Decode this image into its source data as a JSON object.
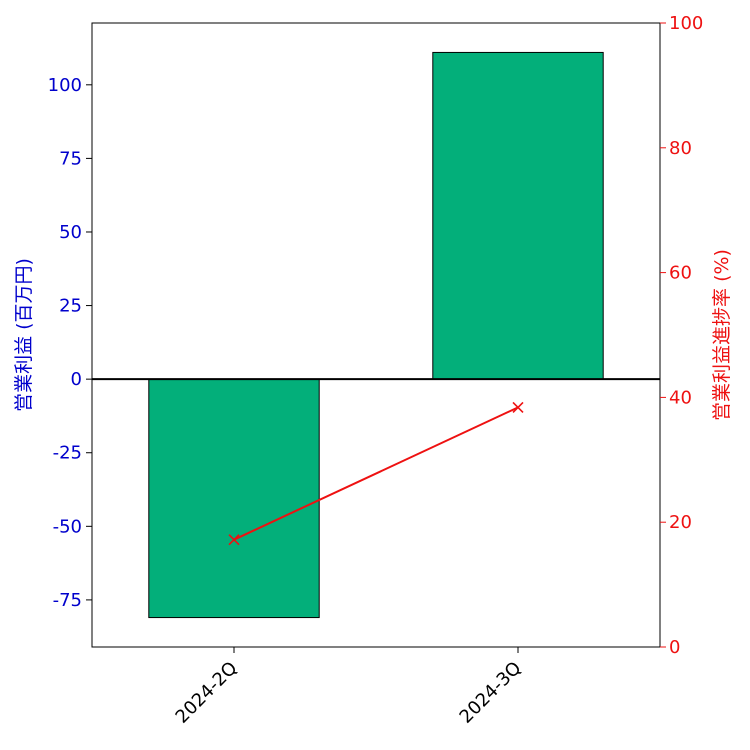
{
  "chart_data": {
    "type": "bar",
    "categories": [
      "2024-2Q",
      "2024-3Q"
    ],
    "series": [
      {
        "type": "bar",
        "axis": "left",
        "values": [
          -81,
          111
        ]
      },
      {
        "type": "line",
        "axis": "right",
        "marker": "x",
        "values": [
          17.2,
          38.4
        ]
      }
    ],
    "ylabel": "営業利益 (百万円)",
    "ylabel_right": "営業利益進捗率 (%)",
    "ylim": [
      -91,
      121
    ],
    "ylim_right": [
      0,
      100
    ],
    "yticks": [
      -75,
      -50,
      -25,
      0,
      25,
      50,
      75,
      100
    ],
    "yticks_right": [
      0,
      20,
      40,
      60,
      80,
      100
    ],
    "grid": false,
    "colors": {
      "bar": "#03af7a",
      "bar_edge": "#000000",
      "line": "#ee1111",
      "left_axis": "#0000cc",
      "right_axis": "#ee1111"
    }
  }
}
